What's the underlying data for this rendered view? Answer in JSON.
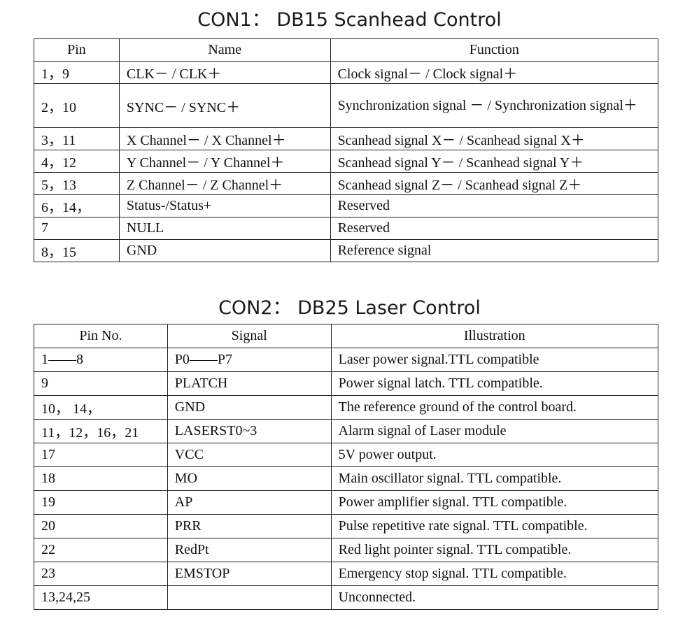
{
  "con1": {
    "title": "CON1： DB15 Scanhead Control",
    "headers": [
      "Pin",
      "Name",
      "Function"
    ],
    "rows": [
      {
        "pin": "1，9",
        "name": "CLK－ / CLK＋",
        "function": "Clock signal－ / Clock signal＋"
      },
      {
        "pin": "2，10",
        "name": "SYNC－ / SYNC＋",
        "function": "Synchronization signal － / Synchronization signal＋"
      },
      {
        "pin": "3，11",
        "name": "X Channel－ / X Channel＋",
        "function": "Scanhead signal X－ / Scanhead signal X＋"
      },
      {
        "pin": "4，12",
        "name": "Y Channel－ / Y Channel＋",
        "function": "Scanhead signal Y－ / Scanhead signal Y＋"
      },
      {
        "pin": "5，13",
        "name": "Z Channel－ / Z Channel＋",
        "function": "Scanhead signal Z－ / Scanhead signal Z＋"
      },
      {
        "pin": "6，14，",
        "name": "Status-/Status+",
        "function": "Reserved"
      },
      {
        "pin": "7",
        "name": "NULL",
        "function": "Reserved"
      },
      {
        "pin": "8，15",
        "name": "GND",
        "function": "Reference signal"
      }
    ]
  },
  "con2": {
    "title": "CON2： DB25 Laser Control",
    "headers": [
      "Pin No.",
      "Signal",
      "Illustration"
    ],
    "rows": [
      {
        "pin": "1——8",
        "signal": "P0——P7",
        "illustration": "Laser power signal.TTL compatible"
      },
      {
        "pin": "9",
        "signal": "PLATCH",
        "illustration": "Power signal latch. TTL compatible."
      },
      {
        "pin": "10， 14，",
        "signal": "GND",
        "illustration": "The reference ground of the control board."
      },
      {
        "pin": "11，12，16，21",
        "signal": "LASERST0~3",
        "illustration": "Alarm signal of Laser module"
      },
      {
        "pin": "17",
        "signal": "VCC",
        "illustration": "5V power output."
      },
      {
        "pin": "18",
        "signal": "MO",
        "illustration": "Main oscillator signal. TTL compatible."
      },
      {
        "pin": "19",
        "signal": "AP",
        "illustration": "Power amplifier signal. TTL compatible."
      },
      {
        "pin": "20",
        "signal": "PRR",
        "illustration": "Pulse repetitive rate signal. TTL compatible."
      },
      {
        "pin": "22",
        "signal": "RedPt",
        "illustration": "Red light pointer signal. TTL compatible."
      },
      {
        "pin": "23",
        "signal": "EMSTOP",
        "illustration": "Emergency stop signal. TTL compatible."
      },
      {
        "pin": "13,24,25",
        "signal": "",
        "illustration": "Unconnected."
      }
    ]
  }
}
